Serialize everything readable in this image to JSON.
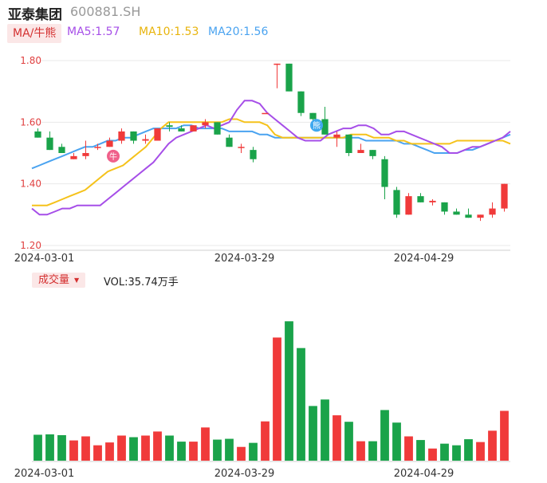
{
  "header": {
    "name": "亚泰集团",
    "code": "600881.SH"
  },
  "ma_legend": {
    "toggle": "MA/牛熊",
    "ma5": "MA5:1.57",
    "ma10": "MA10:1.53",
    "ma20": "MA20:1.56"
  },
  "volume_legend": {
    "toggle": "成交量",
    "readout": "VOL:35.74万手"
  },
  "badges": {
    "bull": "牛",
    "bear": "熊"
  },
  "colors": {
    "up": "#f03a3a",
    "down": "#1aa34a",
    "ma5": "#a64ee8",
    "ma10": "#f5c21b",
    "ma20": "#4aa3f0",
    "axis_text": "#e04040",
    "grid": "#e8e8e8"
  },
  "chart_data": {
    "type": "candlestick",
    "y_ticks": [
      "1.80",
      "1.60",
      "1.40",
      "1.20"
    ],
    "ylim": [
      1.2,
      1.8
    ],
    "x_tick_labels": [
      {
        "index": 0,
        "label": "2024-03-01"
      },
      {
        "index": 17,
        "label": "2024-03-29"
      },
      {
        "index": 32,
        "label": "2024-04-29"
      }
    ],
    "candles": [
      {
        "o": 1.57,
        "h": 1.58,
        "l": 1.55,
        "c": 1.55
      },
      {
        "o": 1.55,
        "h": 1.57,
        "l": 1.51,
        "c": 1.51
      },
      {
        "o": 1.52,
        "h": 1.53,
        "l": 1.5,
        "c": 1.5
      },
      {
        "o": 1.48,
        "h": 1.5,
        "l": 1.48,
        "c": 1.49
      },
      {
        "o": 1.49,
        "h": 1.54,
        "l": 1.48,
        "c": 1.5
      },
      {
        "o": 1.52,
        "h": 1.53,
        "l": 1.51,
        "c": 1.52
      },
      {
        "o": 1.52,
        "h": 1.55,
        "l": 1.52,
        "c": 1.54
      },
      {
        "o": 1.54,
        "h": 1.58,
        "l": 1.53,
        "c": 1.57
      },
      {
        "o": 1.57,
        "h": 1.57,
        "l": 1.53,
        "c": 1.54
      },
      {
        "o": 1.54,
        "h": 1.56,
        "l": 1.53,
        "c": 1.545
      },
      {
        "o": 1.54,
        "h": 1.58,
        "l": 1.54,
        "c": 1.58
      },
      {
        "o": 1.59,
        "h": 1.6,
        "l": 1.57,
        "c": 1.585
      },
      {
        "o": 1.58,
        "h": 1.59,
        "l": 1.57,
        "c": 1.57
      },
      {
        "o": 1.57,
        "h": 1.59,
        "l": 1.57,
        "c": 1.59
      },
      {
        "o": 1.59,
        "h": 1.61,
        "l": 1.58,
        "c": 1.6
      },
      {
        "o": 1.6,
        "h": 1.6,
        "l": 1.56,
        "c": 1.56
      },
      {
        "o": 1.55,
        "h": 1.56,
        "l": 1.52,
        "c": 1.52
      },
      {
        "o": 1.52,
        "h": 1.53,
        "l": 1.5,
        "c": 1.52
      },
      {
        "o": 1.51,
        "h": 1.52,
        "l": 1.47,
        "c": 1.48
      },
      {
        "o": 1.63,
        "h": 1.63,
        "l": 1.63,
        "c": 1.63
      },
      {
        "o": 1.79,
        "h": 1.79,
        "l": 1.71,
        "c": 1.79
      },
      {
        "o": 1.79,
        "h": 1.79,
        "l": 1.7,
        "c": 1.7
      },
      {
        "o": 1.7,
        "h": 1.7,
        "l": 1.62,
        "c": 1.63
      },
      {
        "o": 1.63,
        "h": 1.63,
        "l": 1.6,
        "c": 1.61
      },
      {
        "o": 1.61,
        "h": 1.65,
        "l": 1.56,
        "c": 1.56
      },
      {
        "o": 1.55,
        "h": 1.57,
        "l": 1.52,
        "c": 1.56
      },
      {
        "o": 1.56,
        "h": 1.56,
        "l": 1.49,
        "c": 1.5
      },
      {
        "o": 1.5,
        "h": 1.53,
        "l": 1.5,
        "c": 1.51
      },
      {
        "o": 1.51,
        "h": 1.51,
        "l": 1.48,
        "c": 1.49
      },
      {
        "o": 1.48,
        "h": 1.49,
        "l": 1.35,
        "c": 1.39
      },
      {
        "o": 1.38,
        "h": 1.39,
        "l": 1.29,
        "c": 1.3
      },
      {
        "o": 1.3,
        "h": 1.37,
        "l": 1.3,
        "c": 1.36
      },
      {
        "o": 1.36,
        "h": 1.37,
        "l": 1.34,
        "c": 1.34
      },
      {
        "o": 1.34,
        "h": 1.35,
        "l": 1.33,
        "c": 1.345
      },
      {
        "o": 1.34,
        "h": 1.34,
        "l": 1.3,
        "c": 1.31
      },
      {
        "o": 1.31,
        "h": 1.32,
        "l": 1.3,
        "c": 1.3
      },
      {
        "o": 1.3,
        "h": 1.32,
        "l": 1.29,
        "c": 1.29
      },
      {
        "o": 1.29,
        "h": 1.3,
        "l": 1.28,
        "c": 1.3
      },
      {
        "o": 1.3,
        "h": 1.34,
        "l": 1.29,
        "c": 1.32
      },
      {
        "o": 1.32,
        "h": 1.4,
        "l": 1.31,
        "c": 1.4
      }
    ],
    "volume": [
      32,
      32.5,
      31.5,
      25,
      30,
      19,
      22.5,
      31,
      29,
      31,
      36,
      31,
      23.5,
      23.5,
      41,
      26,
      27,
      17,
      22,
      48.5,
      152,
      172,
      139,
      67.5,
      75.5,
      56,
      48,
      24,
      24,
      62.5,
      47,
      30,
      25.5,
      15,
      21,
      19,
      26.5,
      23,
      37,
      61.5
    ],
    "volume_max": 180,
    "ma5": [
      1.32,
      1.3,
      1.3,
      1.31,
      1.32,
      1.32,
      1.33,
      1.33,
      1.33,
      1.33,
      1.35,
      1.37,
      1.39,
      1.41,
      1.43,
      1.45,
      1.47,
      1.5,
      1.53,
      1.55,
      1.56,
      1.57,
      1.58,
      1.59,
      1.58,
      1.59,
      1.6,
      1.64,
      1.67,
      1.67,
      1.66,
      1.63,
      1.61,
      1.59,
      1.57,
      1.55,
      1.54,
      1.54,
      1.54,
      1.56,
      1.57,
      1.58,
      1.58,
      1.59,
      1.59,
      1.58,
      1.56,
      1.56,
      1.57,
      1.57,
      1.56,
      1.55,
      1.54,
      1.53,
      1.52,
      1.5,
      1.5,
      1.51,
      1.52,
      1.52,
      1.53,
      1.54,
      1.55,
      1.57
    ],
    "ma10": [
      1.33,
      1.33,
      1.33,
      1.34,
      1.35,
      1.36,
      1.37,
      1.38,
      1.4,
      1.42,
      1.44,
      1.45,
      1.46,
      1.48,
      1.5,
      1.52,
      1.55,
      1.58,
      1.6,
      1.6,
      1.6,
      1.6,
      1.6,
      1.6,
      1.6,
      1.6,
      1.61,
      1.61,
      1.6,
      1.6,
      1.6,
      1.59,
      1.56,
      1.55,
      1.55,
      1.55,
      1.55,
      1.55,
      1.55,
      1.55,
      1.55,
      1.55,
      1.56,
      1.56,
      1.56,
      1.55,
      1.55,
      1.55,
      1.54,
      1.54,
      1.53,
      1.53,
      1.53,
      1.53,
      1.53,
      1.53,
      1.54,
      1.54,
      1.54,
      1.54,
      1.54,
      1.54,
      1.54,
      1.53
    ],
    "ma20": [
      1.45,
      1.46,
      1.47,
      1.48,
      1.49,
      1.5,
      1.51,
      1.52,
      1.52,
      1.53,
      1.54,
      1.54,
      1.55,
      1.55,
      1.56,
      1.57,
      1.58,
      1.58,
      1.58,
      1.58,
      1.59,
      1.59,
      1.58,
      1.58,
      1.58,
      1.58,
      1.57,
      1.57,
      1.57,
      1.57,
      1.56,
      1.56,
      1.55,
      1.55,
      1.55,
      1.55,
      1.55,
      1.55,
      1.55,
      1.55,
      1.55,
      1.55,
      1.55,
      1.55,
      1.54,
      1.54,
      1.54,
      1.54,
      1.54,
      1.53,
      1.53,
      1.52,
      1.51,
      1.5,
      1.5,
      1.5,
      1.5,
      1.51,
      1.51,
      1.52,
      1.53,
      1.54,
      1.55,
      1.56
    ]
  }
}
